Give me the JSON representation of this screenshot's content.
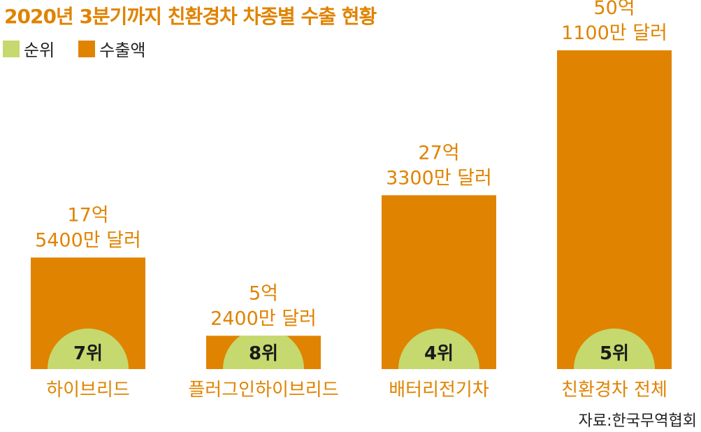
{
  "title": "2020년 3분기까지 친환경차 차종별 수출 현황",
  "legend": [
    {
      "label": "순위",
      "color": "#c5d96e"
    },
    {
      "label": "수출액",
      "color": "#e08300"
    }
  ],
  "colors": {
    "bar": "#e08300",
    "rank_circle": "#c5d96e",
    "value_text": "#e08300",
    "category_text": "#e08300"
  },
  "source": "자료:한국무역협회",
  "chart_data": {
    "type": "bar",
    "title": "2020년 3분기까지 친환경차 차종별 수출 현황",
    "categories": [
      "하이브리드",
      "플러그인하이브리드",
      "배터리전기차",
      "친환경차 전체"
    ],
    "series": [
      {
        "name": "수출액",
        "values": [
          1754000000,
          524000000,
          2733000000,
          5011000000
        ],
        "labels": [
          [
            "17억",
            "5400만 달러"
          ],
          [
            "5억",
            "2400만 달러"
          ],
          [
            "27억",
            "3300만 달러"
          ],
          [
            "50억",
            "1100만 달러"
          ]
        ]
      },
      {
        "name": "순위",
        "values": [
          7,
          8,
          4,
          5
        ],
        "labels": [
          "7위",
          "8위",
          "4위",
          "5위"
        ]
      }
    ],
    "ylim": [
      0,
      5011000000
    ],
    "grid": false,
    "legend": "top-left"
  }
}
